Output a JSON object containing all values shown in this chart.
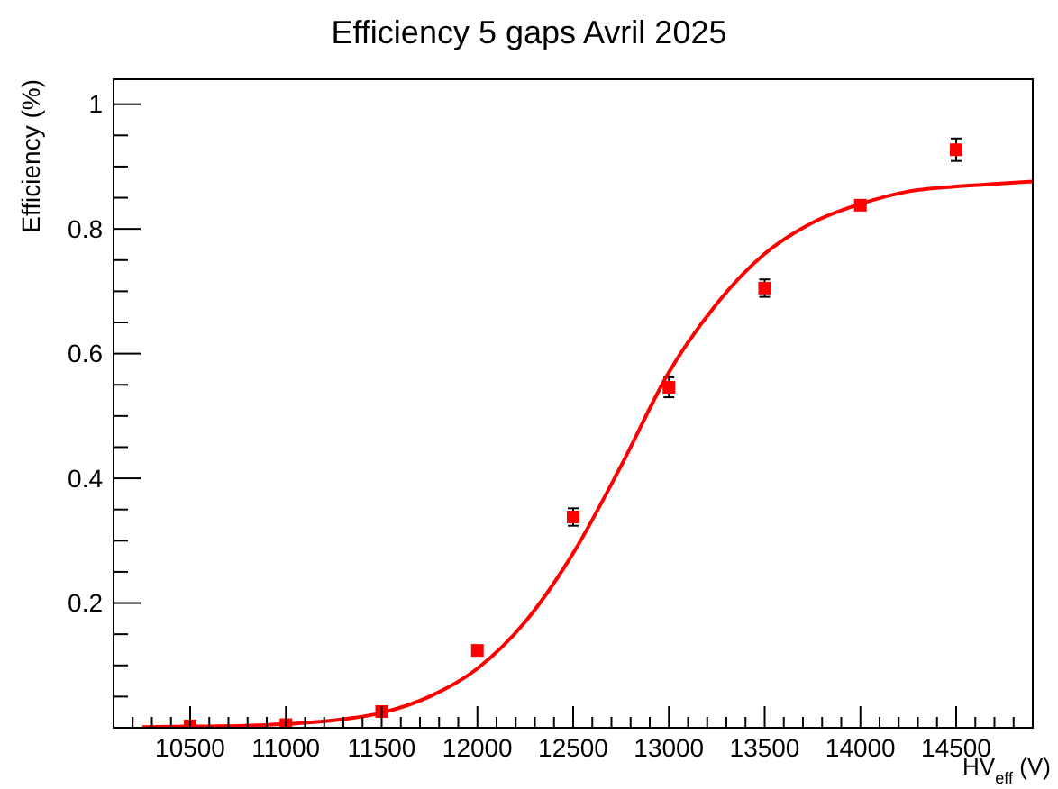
{
  "chart_data": {
    "type": "scatter",
    "title": "Efficiency 5 gaps Avril 2025",
    "xlabel": "HV$_{eff}$ (V)",
    "ylabel": "Efficiency (%)",
    "xlim": [
      10100,
      14900
    ],
    "ylim": [
      0,
      1.04
    ],
    "xticks": [
      {
        "value": 10200,
        "label": null
      },
      {
        "value": 10300,
        "label": null
      },
      {
        "value": 10400,
        "label": null
      },
      10500,
      {
        "value": 10600,
        "label": null
      },
      {
        "value": 10700,
        "label": null
      },
      {
        "value": 10800,
        "label": null
      },
      {
        "value": 10900,
        "label": null
      },
      11000,
      {
        "value": 11100,
        "label": null
      },
      {
        "value": 11200,
        "label": null
      },
      {
        "value": 11300,
        "label": null
      },
      {
        "value": 11400,
        "label": null
      },
      11500,
      {
        "value": 11600,
        "label": null
      },
      {
        "value": 11700,
        "label": null
      },
      {
        "value": 11800,
        "label": null
      },
      {
        "value": 11900,
        "label": null
      },
      12000,
      {
        "value": 12100,
        "label": null
      },
      {
        "value": 12200,
        "label": null
      },
      {
        "value": 12300,
        "label": null
      },
      {
        "value": 12400,
        "label": null
      },
      12500,
      {
        "value": 12600,
        "label": null
      },
      {
        "value": 12700,
        "label": null
      },
      {
        "value": 12800,
        "label": null
      },
      {
        "value": 12900,
        "label": null
      },
      13000,
      {
        "value": 13100,
        "label": null
      },
      {
        "value": 13200,
        "label": null
      },
      {
        "value": 13300,
        "label": null
      },
      {
        "value": 13400,
        "label": null
      },
      13500,
      {
        "value": 13600,
        "label": null
      },
      {
        "value": 13700,
        "label": null
      },
      {
        "value": 13800,
        "label": null
      },
      {
        "value": 13900,
        "label": null
      },
      14000,
      {
        "value": 14100,
        "label": null
      },
      {
        "value": 14200,
        "label": null
      },
      {
        "value": 14300,
        "label": null
      },
      {
        "value": 14400,
        "label": null
      },
      14500,
      {
        "value": 14600,
        "label": null
      },
      {
        "value": 14700,
        "label": null
      },
      {
        "value": 14800,
        "label": null
      }
    ],
    "yticks": [
      {
        "value": 0.05,
        "label": null
      },
      {
        "value": 0.1,
        "label": null
      },
      {
        "value": 0.15,
        "label": null
      },
      0.2,
      {
        "value": 0.25,
        "label": null
      },
      {
        "value": 0.3,
        "label": null
      },
      {
        "value": 0.35,
        "label": null
      },
      0.4,
      {
        "value": 0.45,
        "label": null
      },
      {
        "value": 0.5,
        "label": null
      },
      {
        "value": 0.55,
        "label": null
      },
      0.6,
      {
        "value": 0.65,
        "label": null
      },
      {
        "value": 0.7,
        "label": null
      },
      {
        "value": 0.75,
        "label": null
      },
      0.8,
      {
        "value": 0.85,
        "label": null
      },
      {
        "value": 0.9,
        "label": null
      },
      {
        "value": 0.95,
        "label": null
      },
      1
    ],
    "grid": false,
    "series": [
      {
        "color": "#ff0000",
        "marker": "square",
        "x": [
          10500,
          11000,
          11500,
          12000,
          12500,
          13000,
          13500,
          14000,
          14500
        ],
        "values": [
          0.003,
          0.005,
          0.026,
          0.124,
          0.338,
          0.546,
          0.705,
          0.838,
          0.927
        ],
        "errors": [
          null,
          null,
          null,
          null,
          0.014,
          0.016,
          0.014,
          null,
          0.018
        ]
      },
      {
        "type": "line",
        "color": "#ff0000",
        "line_style": "solid",
        "marker": "none",
        "x": [
          10250,
          10500,
          10750,
          11000,
          11250,
          11500,
          11750,
          12000,
          12250,
          12500,
          12750,
          13000,
          13250,
          13500,
          13750,
          14000,
          14250,
          14500,
          14750,
          14900
        ],
        "values": [
          0.001,
          0.002,
          0.003,
          0.006,
          0.012,
          0.024,
          0.05,
          0.095,
          0.17,
          0.28,
          0.42,
          0.57,
          0.68,
          0.76,
          0.81,
          0.84,
          0.86,
          0.868,
          0.873,
          0.876
        ]
      }
    ]
  }
}
